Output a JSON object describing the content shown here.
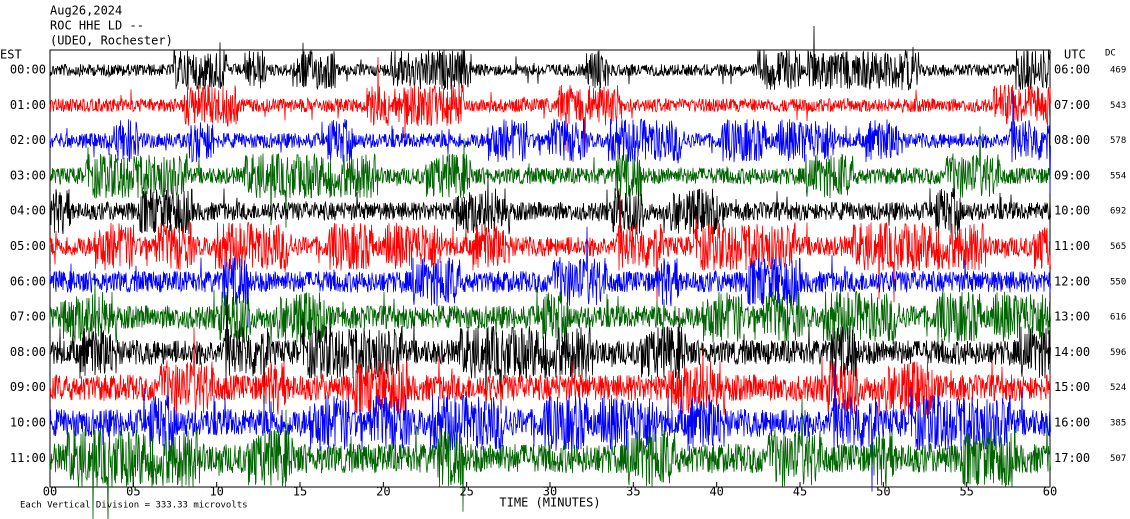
{
  "header": [
    "Aug26,2024",
    "ROC HHE LD --",
    "(UDEO, Rochester)"
  ],
  "left_label": "EST",
  "right_label": "UTC",
  "dc_label": "DC",
  "rows": [
    {
      "est": "00:00",
      "utc": "06:00",
      "dc": "469"
    },
    {
      "est": "01:00",
      "utc": "07:00",
      "dc": "543"
    },
    {
      "est": "02:00",
      "utc": "08:00",
      "dc": "578"
    },
    {
      "est": "03:00",
      "utc": "09:00",
      "dc": "554"
    },
    {
      "est": "04:00",
      "utc": "10:00",
      "dc": "692"
    },
    {
      "est": "05:00",
      "utc": "11:00",
      "dc": "565"
    },
    {
      "est": "06:00",
      "utc": "12:00",
      "dc": "550"
    },
    {
      "est": "07:00",
      "utc": "13:00",
      "dc": "616"
    },
    {
      "est": "08:00",
      "utc": "14:00",
      "dc": "596"
    },
    {
      "est": "09:00",
      "utc": "15:00",
      "dc": "524"
    },
    {
      "est": "10:00",
      "utc": "16:00",
      "dc": "385"
    },
    {
      "est": "11:00",
      "utc": "17:00",
      "dc": "507"
    }
  ],
  "colors": [
    "#000000",
    "#ff0000",
    "#0000ff",
    "#006400"
  ],
  "x_axis": {
    "label": "TIME (MINUTES)",
    "lim": [
      0,
      60
    ],
    "ticks": [
      {
        "value": 0,
        "label": "00"
      },
      {
        "value": 5,
        "label": "05"
      },
      10,
      15,
      20,
      25,
      30,
      35,
      40,
      45,
      50,
      55,
      60
    ]
  },
  "footer": "Each Vertical Division = 333.33 microvolts"
}
